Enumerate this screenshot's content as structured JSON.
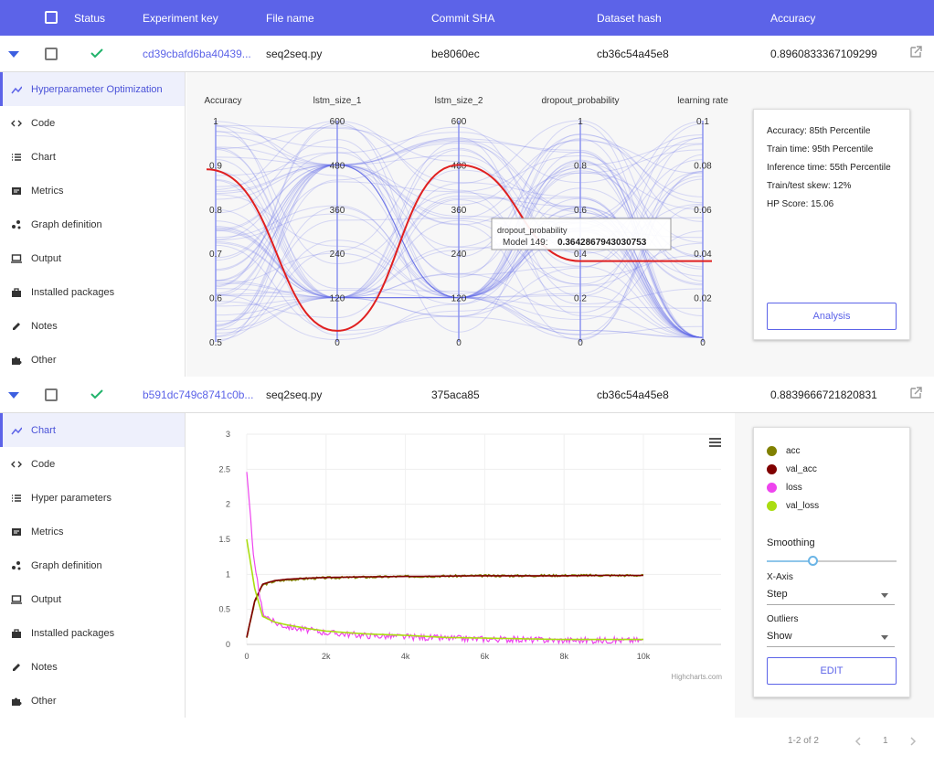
{
  "header": {
    "status": "Status",
    "key": "Experiment key",
    "file": "File name",
    "commit": "Commit SHA",
    "dataset": "Dataset hash",
    "accuracy": "Accuracy"
  },
  "rows": [
    {
      "key": "cd39cbafd6ba40439...",
      "file": "seq2seq.py",
      "commit": "be8060ec",
      "dataset": "cb36c54a45e8",
      "accuracy": "0.8960833367109299"
    },
    {
      "key": "b591dc749c8741c0b...",
      "file": "seq2seq.py",
      "commit": "375aca85",
      "dataset": "cb36c54a45e8",
      "accuracy": "0.8839666721820831"
    }
  ],
  "sidebar1": [
    {
      "label": "Hyperparameter Optimization",
      "icon": "trend-icon"
    },
    {
      "label": "Code",
      "icon": "code-icon"
    },
    {
      "label": "Chart",
      "icon": "list-icon"
    },
    {
      "label": "Metrics",
      "icon": "metrics-icon"
    },
    {
      "label": "Graph definition",
      "icon": "graph-icon"
    },
    {
      "label": "Output",
      "icon": "monitor-icon"
    },
    {
      "label": "Installed packages",
      "icon": "package-icon"
    },
    {
      "label": "Notes",
      "icon": "pencil-icon"
    },
    {
      "label": "Other",
      "icon": "puzzle-icon"
    }
  ],
  "sidebar2": [
    {
      "label": "Chart",
      "icon": "trend-icon"
    },
    {
      "label": "Code",
      "icon": "code-icon"
    },
    {
      "label": "Hyper parameters",
      "icon": "list-icon"
    },
    {
      "label": "Metrics",
      "icon": "metrics-icon"
    },
    {
      "label": "Graph definition",
      "icon": "graph-icon"
    },
    {
      "label": "Output",
      "icon": "monitor-icon"
    },
    {
      "label": "Installed packages",
      "icon": "package-icon"
    },
    {
      "label": "Notes",
      "icon": "pencil-icon"
    },
    {
      "label": "Other",
      "icon": "puzzle-icon"
    }
  ],
  "parallel": {
    "axes": [
      {
        "name": "Accuracy",
        "ticks": [
          "1",
          "0.9",
          "0.8",
          "0.7",
          "0.6",
          "0.5"
        ]
      },
      {
        "name": "lstm_size_1",
        "ticks": [
          "600",
          "480",
          "360",
          "240",
          "120",
          "0"
        ]
      },
      {
        "name": "lstm_size_2",
        "ticks": [
          "600",
          "480",
          "360",
          "240",
          "120",
          "0"
        ]
      },
      {
        "name": "dropout_probability",
        "ticks": [
          "1",
          "0.8",
          "0.6",
          "0.4",
          "0.2",
          "0"
        ]
      },
      {
        "name": "learning rate",
        "ticks": [
          "0.1",
          "0.08",
          "0.06",
          "0.04",
          "0.02",
          "0"
        ]
      }
    ],
    "tooltip": {
      "title": "dropout_probability",
      "label": "Model 149:",
      "value": "0.3642867943030753"
    }
  },
  "stats": {
    "lines": [
      "Accuracy: 85th Percentile",
      "Train time: 95th Percentile",
      "Inference time: 55th Percentile",
      "Train/test skew: 12%",
      "HP Score: 15.06"
    ],
    "button": "Analysis"
  },
  "chart_data": {
    "type": "line",
    "x": [
      0,
      200,
      400,
      700,
      1000,
      1500,
      2000,
      3000,
      4000,
      5000,
      6000,
      7000,
      8000,
      9000,
      10000
    ],
    "series": [
      {
        "name": "acc",
        "color": "#808000",
        "values": [
          0.1,
          0.6,
          0.85,
          0.9,
          0.92,
          0.94,
          0.95,
          0.96,
          0.97,
          0.975,
          0.98,
          0.98,
          0.985,
          0.985,
          0.985
        ]
      },
      {
        "name": "val_acc",
        "color": "#800000",
        "values": [
          0.1,
          0.62,
          0.86,
          0.91,
          0.93,
          0.945,
          0.955,
          0.965,
          0.97,
          0.975,
          0.98,
          0.98,
          0.98,
          0.985,
          0.985
        ]
      },
      {
        "name": "loss",
        "color": "#ee44ee",
        "values": [
          2.42,
          1.1,
          0.45,
          0.3,
          0.25,
          0.2,
          0.16,
          0.12,
          0.1,
          0.08,
          0.07,
          0.06,
          0.05,
          0.05,
          0.05
        ]
      },
      {
        "name": "val_loss",
        "color": "#aadd11",
        "values": [
          1.5,
          0.8,
          0.4,
          0.32,
          0.28,
          0.23,
          0.19,
          0.15,
          0.13,
          0.1,
          0.09,
          0.08,
          0.07,
          0.07,
          0.07
        ]
      }
    ],
    "yticks": [
      "0",
      "0.5",
      "1",
      "1.5",
      "2",
      "2.5",
      "3"
    ],
    "xticks": [
      "0",
      "2k",
      "4k",
      "6k",
      "8k",
      "10k"
    ],
    "ylim": [
      0,
      3
    ],
    "xlim": [
      0,
      10000
    ],
    "credit": "Highcharts.com"
  },
  "legend_panel": {
    "smoothing": "Smoothing",
    "smoothing_level": 0.35,
    "xaxis_label": "X-Axis",
    "xaxis_value": "Step",
    "outliers_label": "Outliers",
    "outliers_value": "Show",
    "button": "EDIT"
  },
  "footer": {
    "range": "1-2 of 2",
    "page": "1"
  }
}
